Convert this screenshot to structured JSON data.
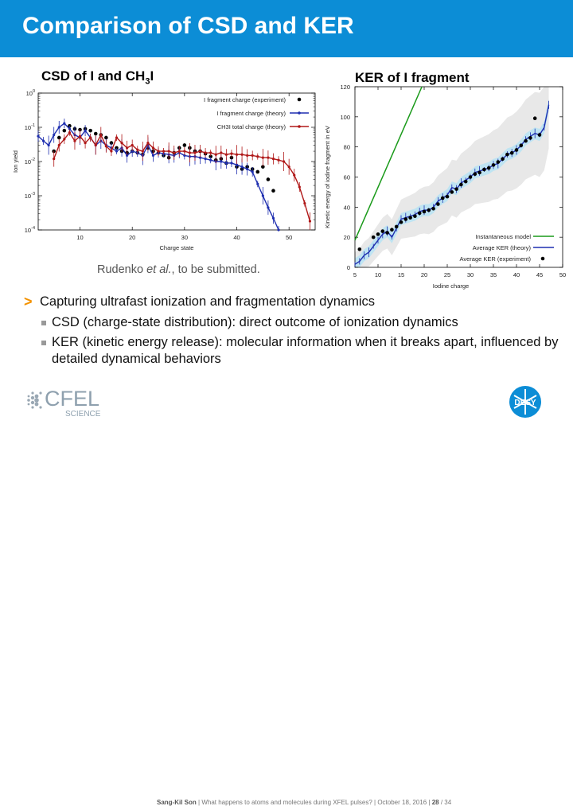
{
  "slide": {
    "title": "Comparison of CSD and KER",
    "left_panel_title": "CSD of I and CH",
    "left_panel_title_sub": "3",
    "left_panel_title_tail": "I",
    "right_panel_title": "KER of I fragment",
    "citation_prefix": "Rudenko ",
    "citation_italic": "et al.",
    "citation_suffix": ", to be submitted.",
    "bullets": [
      {
        "marker": ">",
        "text": "Capturing ultrafast ionization and fragmentation dynamics"
      },
      {
        "text": "CSD (charge-state distribution): direct outcome of ionization dynamics"
      },
      {
        "text": "KER (kinetic energy release): molecular information when it breaks apart, influenced by detailed dynamical behaviors"
      }
    ],
    "footer": {
      "author": "Sang-Kil Son",
      "text": "| What happens to atoms and molecules during XFEL pulses? | October 18, 2016 |",
      "page": "28",
      "total": "/ 34",
      "logo_left_text": "CFEL",
      "logo_left_sub": "SCIENCE",
      "logo_right_text": "DESY"
    },
    "colors": {
      "accent": "#0c8dd6",
      "bullet": "#f39200",
      "theory_blue": "#1f2fb0",
      "theory_red": "#b01818",
      "model_green": "#1a9a1a"
    }
  },
  "chart_data": [
    {
      "type": "line",
      "title": "CSD of I and CH3I",
      "xlabel": "Charge state",
      "ylabel": "Ion yield",
      "yscale": "log",
      "xlim": [
        2,
        55
      ],
      "ylim": [
        0.0001,
        1
      ],
      "xticks": [
        10,
        20,
        30,
        40,
        50
      ],
      "yticks": [
        "10^0",
        "10^-1",
        "10^-2",
        "10^-3",
        "10^-4"
      ],
      "legend_position": "top-right",
      "series": [
        {
          "name": "I fragment charge (experiment)",
          "style": "dots",
          "color": "#000000",
          "x": [
            5,
            6,
            7,
            8,
            9,
            10,
            11,
            12,
            13,
            14,
            15,
            16,
            17,
            18,
            19,
            20,
            21,
            22,
            23,
            24,
            25,
            26,
            27,
            28,
            29,
            30,
            31,
            32,
            33,
            34,
            35,
            36,
            37,
            38,
            39,
            40,
            41,
            42,
            43,
            44,
            45,
            46,
            47
          ],
          "y": [
            0.02,
            0.05,
            0.08,
            0.11,
            0.09,
            0.085,
            0.09,
            0.08,
            0.065,
            0.06,
            0.05,
            0.035,
            0.025,
            0.02,
            0.018,
            0.02,
            0.018,
            0.016,
            0.025,
            0.02,
            0.018,
            0.015,
            0.013,
            0.018,
            0.025,
            0.03,
            0.025,
            0.02,
            0.02,
            0.017,
            0.014,
            0.011,
            0.012,
            0.009,
            0.013,
            0.007,
            0.006,
            0.007,
            0.006,
            0.005,
            0.007,
            0.003,
            0.0014
          ]
        },
        {
          "name": "I fragment charge (theory)",
          "style": "line-errorbars",
          "color": "#1f2fb0",
          "x": [
            2,
            3,
            4,
            5,
            6,
            7,
            8,
            9,
            10,
            11,
            12,
            13,
            14,
            15,
            16,
            17,
            18,
            19,
            20,
            21,
            22,
            23,
            24,
            25,
            26,
            27,
            28,
            29,
            30,
            31,
            32,
            33,
            34,
            35,
            36,
            37,
            38,
            39,
            40,
            41,
            42,
            43,
            44,
            45,
            46,
            47,
            48
          ],
          "y": [
            0.055,
            0.04,
            0.03,
            0.06,
            0.1,
            0.13,
            0.09,
            0.06,
            0.05,
            0.08,
            0.05,
            0.03,
            0.04,
            0.03,
            0.025,
            0.02,
            0.025,
            0.015,
            0.02,
            0.018,
            0.015,
            0.03,
            0.015,
            0.018,
            0.017,
            0.016,
            0.015,
            0.018,
            0.015,
            0.014,
            0.014,
            0.013,
            0.012,
            0.011,
            0.01,
            0.01,
            0.009,
            0.009,
            0.008,
            0.007,
            0.006,
            0.005,
            0.0022,
            0.001,
            0.00045,
            0.00022,
            0.0001
          ]
        },
        {
          "name": "CH3I total charge (theory)",
          "style": "line-errorbars",
          "color": "#b01818",
          "x": [
            5,
            6,
            7,
            8,
            9,
            10,
            11,
            12,
            13,
            14,
            15,
            16,
            17,
            18,
            19,
            20,
            21,
            22,
            23,
            24,
            25,
            26,
            27,
            28,
            29,
            30,
            31,
            32,
            33,
            34,
            35,
            36,
            37,
            38,
            39,
            40,
            41,
            42,
            43,
            44,
            45,
            46,
            47,
            48,
            49,
            50,
            51,
            52,
            53,
            54
          ],
          "y": [
            0.012,
            0.03,
            0.045,
            0.07,
            0.04,
            0.055,
            0.035,
            0.05,
            0.03,
            0.06,
            0.028,
            0.02,
            0.05,
            0.035,
            0.025,
            0.03,
            0.022,
            0.02,
            0.035,
            0.025,
            0.02,
            0.02,
            0.02,
            0.018,
            0.02,
            0.02,
            0.018,
            0.018,
            0.02,
            0.018,
            0.018,
            0.016,
            0.018,
            0.016,
            0.017,
            0.016,
            0.016,
            0.015,
            0.015,
            0.014,
            0.013,
            0.013,
            0.012,
            0.011,
            0.01,
            0.007,
            0.004,
            0.0018,
            0.0006,
            0.00018
          ]
        }
      ]
    },
    {
      "type": "line",
      "title": "KER of I fragment",
      "xlabel": "Iodine charge",
      "ylabel": "Kinetic energy of iodine fragment in eV",
      "xlim": [
        5,
        50
      ],
      "ylim": [
        0,
        120
      ],
      "xticks": [
        5,
        10,
        15,
        20,
        25,
        30,
        35,
        40,
        45,
        50
      ],
      "yticks": [
        0,
        20,
        40,
        60,
        80,
        100,
        120
      ],
      "legend_position": "bottom-right",
      "series": [
        {
          "name": "Instantaneous model",
          "style": "line",
          "color": "#1a9a1a",
          "x": [
            5,
            19.5
          ],
          "y": [
            18,
            120
          ]
        },
        {
          "name": "Average KER (theory)",
          "style": "line-errorbars",
          "color": "#1f2fb0",
          "x": [
            5,
            6,
            7,
            8,
            9,
            10,
            11,
            12,
            13,
            14,
            15,
            16,
            17,
            18,
            19,
            20,
            21,
            22,
            23,
            24,
            25,
            26,
            27,
            28,
            29,
            30,
            31,
            32,
            33,
            34,
            35,
            36,
            37,
            38,
            39,
            40,
            41,
            42,
            43,
            44,
            45,
            46,
            47
          ],
          "y": [
            2,
            4,
            8,
            10,
            14,
            18,
            22,
            24,
            20,
            26,
            32,
            33,
            34,
            35,
            37,
            38,
            38,
            40,
            44,
            46,
            48,
            53,
            52,
            56,
            58,
            60,
            63,
            64,
            65,
            66,
            68,
            69,
            72,
            75,
            76,
            78,
            81,
            85,
            87,
            89,
            88,
            93,
            108
          ]
        },
        {
          "name": "Average KER (experiment)",
          "style": "dots",
          "color": "#000000",
          "x": [
            6,
            9,
            10,
            11,
            12,
            13,
            14,
            15,
            16,
            17,
            18,
            19,
            20,
            21,
            22,
            23,
            24,
            25,
            26,
            27,
            28,
            29,
            30,
            31,
            32,
            33,
            34,
            35,
            36,
            37,
            38,
            39,
            40,
            41,
            42,
            43,
            44,
            45
          ],
          "y": [
            12,
            20,
            22,
            24,
            23,
            25,
            27,
            30,
            32,
            33,
            34,
            36,
            37,
            38,
            39,
            42,
            46,
            47,
            50,
            52,
            55,
            57,
            60,
            62,
            63,
            65,
            66,
            68,
            70,
            72,
            75,
            76,
            78,
            81,
            84,
            86,
            99,
            88
          ]
        }
      ]
    }
  ]
}
